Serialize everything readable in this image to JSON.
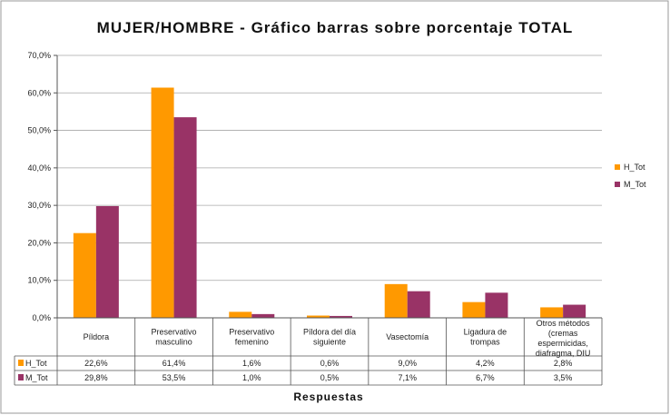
{
  "chart_data": {
    "type": "bar",
    "title": "MUJER/HOMBRE - Gráfico barras sobre porcentaje TOTAL",
    "xlabel": "Respuestas",
    "ylabel": "",
    "ylim": [
      0,
      70
    ],
    "y_ticks": [
      "0,0%",
      "10,0%",
      "20,0%",
      "30,0%",
      "40,0%",
      "50,0%",
      "60,0%",
      "70,0%"
    ],
    "grid": true,
    "legend_position": "right",
    "categories": [
      [
        "Píldora"
      ],
      [
        "Preservativo",
        "masculino"
      ],
      [
        "Preservativo",
        "femenino"
      ],
      [
        "Píldora del día",
        "siguiente"
      ],
      [
        "Vasectomía"
      ],
      [
        "Ligadura de",
        "trompas"
      ],
      [
        "Otros métodos",
        "(cremas",
        "espermicidas,",
        "diafragma, DIU"
      ]
    ],
    "series": [
      {
        "name": "H_Tot",
        "color": "#FF9900",
        "values": [
          22.6,
          61.4,
          1.6,
          0.6,
          9.0,
          4.2,
          2.8
        ],
        "labels": [
          "22,6%",
          "61,4%",
          "1,6%",
          "0,6%",
          "9,0%",
          "4,2%",
          "2,8%"
        ]
      },
      {
        "name": "M_Tot",
        "color": "#993366",
        "values": [
          29.8,
          53.5,
          1.0,
          0.5,
          7.1,
          6.7,
          3.5
        ],
        "labels": [
          "29,8%",
          "53,5%",
          "1,0%",
          "0,5%",
          "7,1%",
          "6,7%",
          "3,5%"
        ]
      }
    ]
  }
}
